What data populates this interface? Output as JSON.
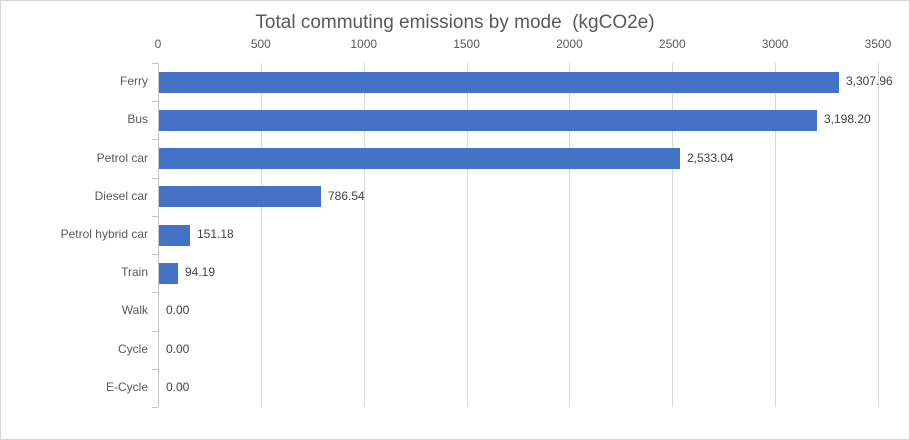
{
  "chart_data": {
    "type": "bar",
    "orientation": "horizontal",
    "title": "Total commuting emissions by mode  (kgCO2e)",
    "xlabel": "",
    "ylabel": "",
    "categories": [
      "Ferry",
      "Bus",
      "Petrol car",
      "Diesel car",
      "Petrol hybrid car",
      "Train",
      "Walk",
      "Cycle",
      "E-Cycle"
    ],
    "values": [
      3307.96,
      3198.2,
      2533.04,
      786.54,
      151.18,
      94.19,
      0,
      0,
      0
    ],
    "data_labels": [
      "3,307.96",
      "3,198.20",
      "2,533.04",
      "786.54",
      "151.18",
      "94.19",
      "0.00",
      "0.00",
      "0.00"
    ],
    "x_ticks": [
      0,
      500,
      1000,
      1500,
      2000,
      2500,
      3000,
      3500
    ],
    "x_tick_labels": [
      "0",
      "500",
      "1000",
      "1500",
      "2000",
      "2500",
      "3000",
      "3500"
    ],
    "xlim": [
      0,
      3500
    ],
    "grid": true,
    "legend": "none",
    "colors": {
      "bar": "#4472C4",
      "gridline": "#d9d9d9",
      "axis": "#c6c6c6",
      "axis_text": "#595959",
      "data_label_text": "#404040",
      "title_text": "#595959",
      "background": "#ffffff",
      "frame_border": "#d7d7d7"
    }
  }
}
